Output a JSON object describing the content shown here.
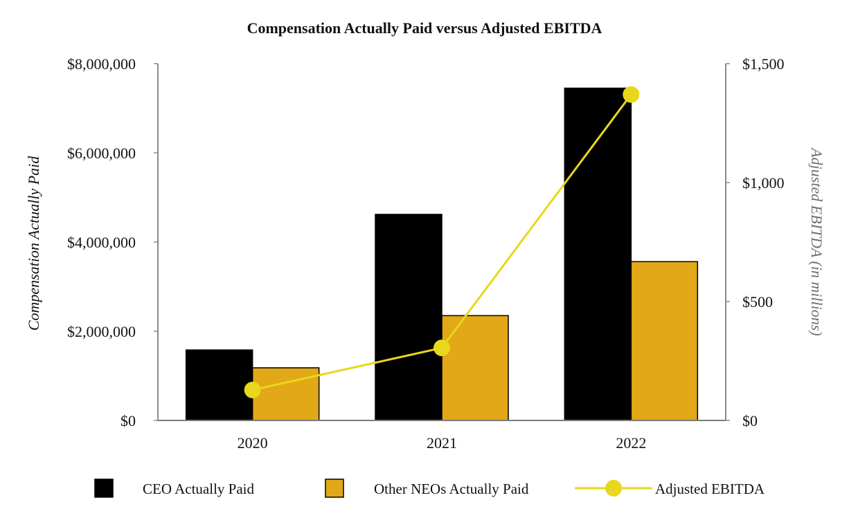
{
  "chart_data": {
    "type": "bar",
    "title": "Compensation Actually Paid versus Adjusted EBITDA",
    "categories": [
      "2020",
      "2021",
      "2022"
    ],
    "ylabel": "Compensation Actually Paid",
    "y2label": "Adjusted EBITDA (in millions)",
    "ylim": [
      0,
      8000000
    ],
    "y2lim": [
      0,
      1500
    ],
    "yticks": [
      0,
      2000000,
      4000000,
      6000000,
      8000000
    ],
    "ytick_labels": [
      "$0",
      "$2,000,000",
      "$4,000,000",
      "$6,000,000",
      "$8,000,000"
    ],
    "y2ticks": [
      0,
      500,
      1000,
      1500
    ],
    "y2tick_labels": [
      "$0",
      "$500",
      "$1,000",
      "$1,500"
    ],
    "series": [
      {
        "name": "CEO Actually Paid",
        "kind": "bar",
        "axis": "left",
        "color": "#000000",
        "values": [
          1580000,
          4620000,
          7450000
        ]
      },
      {
        "name": "Other NEOs Actually Paid",
        "kind": "bar",
        "axis": "left",
        "color": "#E2A817",
        "values": [
          1180000,
          2350000,
          3560000
        ]
      },
      {
        "name": "Adjusted EBITDA",
        "kind": "line",
        "axis": "right",
        "color": "#E8D81C",
        "values": [
          128,
          305,
          1370
        ]
      }
    ],
    "legend_position": "bottom",
    "grid": false
  },
  "colors": {
    "axis": "#8a8a8a",
    "baseline": "#7a7a7a",
    "text": "#111111",
    "right_label": "#6e6e6e"
  }
}
